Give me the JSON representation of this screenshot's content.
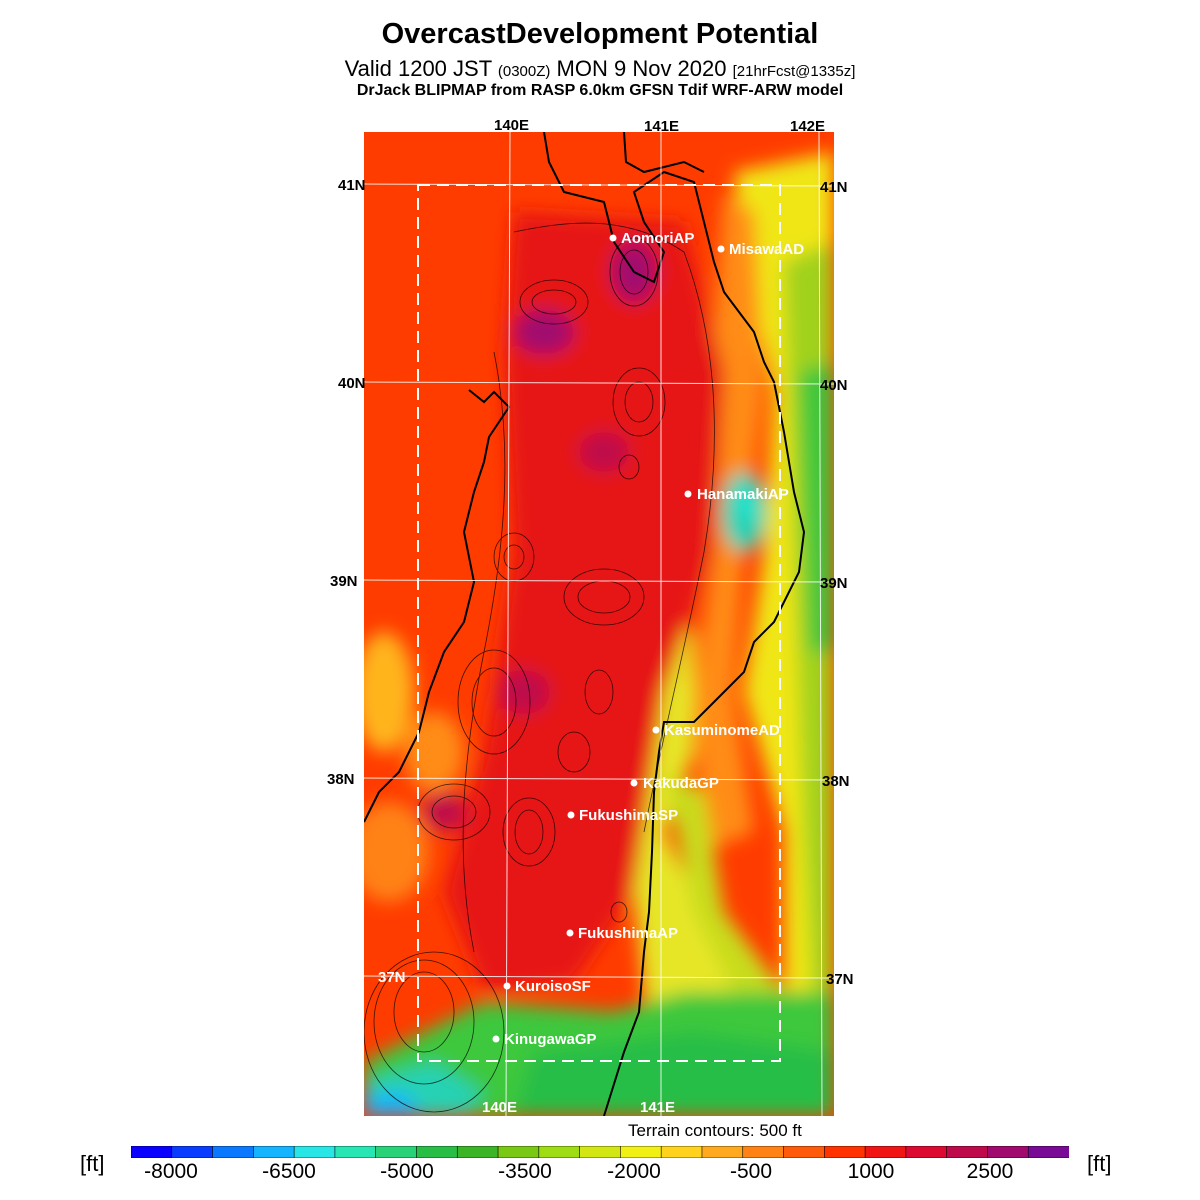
{
  "title": "OvercastDevelopment Potential",
  "subtitle": {
    "valid": "Valid 1200 JST",
    "zulu": "(0300Z)",
    "date": "MON 9 Nov 2020",
    "forecast": "[21hrFcst@1335z]"
  },
  "model_line": "DrJack BLIPMAP from RASP 6.0km GFSN Tdif WRF-ARW model",
  "map": {
    "lon_labels_top": [
      "140E",
      "141E",
      "142E"
    ],
    "lon_labels_bottom": [
      "140E",
      "141E"
    ],
    "lat_labels_left": [
      "41N",
      "40N",
      "39N",
      "38N",
      "37N"
    ],
    "lat_labels_right": [
      "41N",
      "40N",
      "39N",
      "38N",
      "37N"
    ],
    "stations": [
      {
        "name": "AomoriAP"
      },
      {
        "name": "MisawaAD"
      },
      {
        "name": "HanamakiAP"
      },
      {
        "name": "KasuminomeAD"
      },
      {
        "name": "KakudaGP"
      },
      {
        "name": "FukushimaSP"
      },
      {
        "name": "FukushimaAP"
      },
      {
        "name": "KuroisoSF"
      },
      {
        "name": "KinugawaGP"
      }
    ]
  },
  "terrain_note": "Terrain contours: 500 ft",
  "colorbar": {
    "unit_left": "[ft]",
    "unit_right": "[ft]",
    "tick_labels": [
      "-8000",
      "-6500",
      "-5000",
      "-3500",
      "-2000",
      "-500",
      "1000",
      "2500"
    ],
    "colors": [
      "#0a00ff",
      "#0a3cff",
      "#0a78ff",
      "#14b4ff",
      "#28e6e6",
      "#28e6b4",
      "#28d278",
      "#28be46",
      "#3cb428",
      "#78c814",
      "#a0dc14",
      "#d2e614",
      "#f0f014",
      "#ffd21e",
      "#ffaa1e",
      "#ff8214",
      "#ff5a0a",
      "#ff3200",
      "#f01414",
      "#dc0a32",
      "#be0a4b",
      "#a00a6e",
      "#780a96"
    ]
  }
}
